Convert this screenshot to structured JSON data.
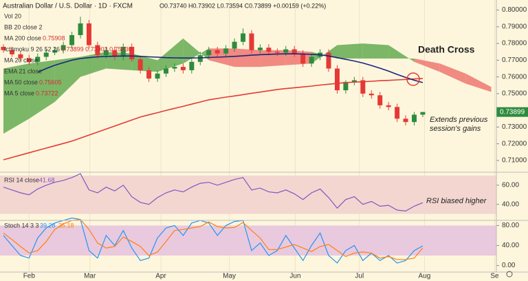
{
  "header": {
    "symbol": "Australian Dollar / U.S. Dollar · 1D · FXCM",
    "ohlc": "O0.73740 H0.73902 L0.73594 C0.73899 +0.00159 (+0.22%)"
  },
  "legend": [
    {
      "name": "Vol 20"
    },
    {
      "name": "BB 20 close 2"
    },
    {
      "name": "MA 200 close",
      "value": "0.75908"
    },
    {
      "name": "Ichimoku 9 26 52 26",
      "value": "0.73899 0.73903 0.75430"
    },
    {
      "name": "MA 20 close"
    },
    {
      "name": "EMA 21 close"
    },
    {
      "name": "MA 50 close",
      "value": "0.75605"
    },
    {
      "name": "MA 5 close",
      "value": "0.73722"
    }
  ],
  "chart_data": [
    {
      "type": "candlestick",
      "open": [
        0.778,
        0.776,
        0.7735,
        0.7712,
        0.769,
        0.772,
        0.7745,
        0.776,
        0.779,
        0.785,
        0.792,
        0.779,
        0.773,
        0.776,
        0.772,
        0.778,
        0.7705,
        0.764,
        0.759,
        0.762,
        0.765,
        0.766,
        0.764,
        0.769,
        0.773,
        0.776,
        0.774,
        0.777,
        0.781,
        0.786,
        0.776,
        0.7775,
        0.775,
        0.7745,
        0.7765,
        0.774,
        0.768,
        0.772,
        0.7745,
        0.765,
        0.752,
        0.757,
        0.758,
        0.75,
        0.749,
        0.743,
        0.742,
        0.735,
        0.733,
        0.7374
      ],
      "high": [
        0.7795,
        0.778,
        0.7755,
        0.7732,
        0.774,
        0.7765,
        0.778,
        0.781,
        0.787,
        0.796,
        0.794,
        0.781,
        0.778,
        0.778,
        0.78,
        0.78,
        0.7725,
        0.766,
        0.764,
        0.767,
        0.768,
        0.768,
        0.771,
        0.775,
        0.778,
        0.778,
        0.779,
        0.783,
        0.789,
        0.788,
        0.7795,
        0.7795,
        0.777,
        0.7785,
        0.7785,
        0.776,
        0.774,
        0.7765,
        0.7765,
        0.767,
        0.758,
        0.76,
        0.76,
        0.752,
        0.751,
        0.745,
        0.744,
        0.737,
        0.739,
        0.73902
      ],
      "low": [
        0.7745,
        0.772,
        0.7695,
        0.767,
        0.767,
        0.77,
        0.773,
        0.774,
        0.777,
        0.783,
        0.777,
        0.771,
        0.771,
        0.77,
        0.77,
        0.769,
        0.762,
        0.757,
        0.757,
        0.76,
        0.763,
        0.762,
        0.762,
        0.767,
        0.771,
        0.772,
        0.772,
        0.775,
        0.779,
        0.774,
        0.774,
        0.773,
        0.7725,
        0.7725,
        0.772,
        0.766,
        0.766,
        0.77,
        0.763,
        0.75,
        0.75,
        0.755,
        0.748,
        0.747,
        0.741,
        0.74,
        0.733,
        0.731,
        0.731,
        0.73594
      ],
      "close": [
        0.776,
        0.7735,
        0.7712,
        0.769,
        0.772,
        0.7745,
        0.776,
        0.779,
        0.785,
        0.792,
        0.779,
        0.773,
        0.776,
        0.772,
        0.778,
        0.7705,
        0.764,
        0.759,
        0.762,
        0.765,
        0.766,
        0.764,
        0.769,
        0.773,
        0.776,
        0.774,
        0.777,
        0.781,
        0.786,
        0.776,
        0.7775,
        0.775,
        0.7745,
        0.7765,
        0.774,
        0.768,
        0.772,
        0.7745,
        0.765,
        0.752,
        0.757,
        0.758,
        0.75,
        0.749,
        0.743,
        0.742,
        0.735,
        0.733,
        0.7374,
        0.73899
      ],
      "last_label": "0.73899",
      "up_color": "#2e8b3e",
      "down_color": "#e53935",
      "series": [
        {
          "legend": 2,
          "color": "#e53935",
          "values": [
            0.7104,
            0.7118,
            0.7132,
            0.7146,
            0.716,
            0.7174,
            0.7188,
            0.7202,
            0.7216,
            0.7234,
            0.7252,
            0.727,
            0.7288,
            0.7306,
            0.7324,
            0.7342,
            0.736,
            0.7373,
            0.7386,
            0.7399,
            0.7412,
            0.7424,
            0.7437,
            0.745,
            0.7463,
            0.7471,
            0.7479,
            0.7486,
            0.7494,
            0.7502,
            0.7509,
            0.7517,
            0.7525,
            0.753,
            0.7535,
            0.754,
            0.7545,
            0.7551,
            0.7556,
            0.7561,
            0.7566,
            0.7569,
            0.7571,
            0.7574,
            0.7577,
            0.7579,
            0.7582,
            0.7585,
            0.7588,
            0.759
          ]
        },
        {
          "legend": 6,
          "color": "#1a237e",
          "values": [
            null,
            null,
            null,
            null,
            0.7628,
            0.765,
            0.767,
            0.7685,
            0.77,
            0.771,
            0.7715,
            0.772,
            0.7722,
            0.7724,
            0.7725,
            0.7725,
            0.7723,
            0.772,
            0.7718,
            0.7715,
            0.7714,
            0.7713,
            0.7713,
            0.7714,
            0.7716,
            0.7718,
            0.772,
            0.7723,
            0.7726,
            0.773,
            0.7733,
            0.7735,
            0.7737,
            0.7738,
            0.7738,
            0.7737,
            0.7735,
            0.7732,
            0.7725,
            0.7715,
            0.7705,
            0.7695,
            0.7683,
            0.7668,
            0.7652,
            0.7635,
            0.7615,
            0.7597,
            0.758,
            0.7566
          ]
        }
      ],
      "cloud": {
        "x": [
          0,
          3,
          6,
          9,
          12,
          15,
          18,
          21,
          24,
          27,
          30,
          33,
          36,
          39,
          42,
          45,
          48,
          51,
          54,
          57
        ],
        "span_a": [
          0.765,
          0.768,
          0.77,
          0.772,
          0.775,
          0.774,
          0.77,
          0.783,
          0.77,
          0.766,
          0.766,
          0.767,
          0.768,
          0.779,
          0.78,
          0.779,
          0.769,
          0.763,
          0.756,
          0.751
        ],
        "span_b": [
          0.726,
          0.735,
          0.745,
          0.76,
          0.765,
          0.764,
          0.763,
          0.768,
          0.777,
          0.777,
          0.776,
          0.776,
          0.775,
          0.771,
          0.771,
          0.771,
          0.771,
          0.768,
          0.762,
          0.754
        ],
        "up_color": "#5aa84a",
        "down_color": "#ee6f6a"
      },
      "ylim": [
        0.703,
        0.806
      ],
      "yticks": [
        {
          "value": 0.8,
          "label": "0.80000"
        },
        {
          "value": 0.79,
          "label": "0.79000"
        },
        {
          "value": 0.78,
          "label": "0.78000"
        },
        {
          "value": 0.77,
          "label": "0.77000"
        },
        {
          "value": 0.76,
          "label": "0.76000"
        },
        {
          "value": 0.75,
          "label": "0.75000"
        },
        {
          "value": 0.74,
          "label": "0.74000"
        },
        {
          "value": 0.73,
          "label": "0.73000"
        },
        {
          "value": 0.72,
          "label": "0.72000"
        },
        {
          "value": 0.71,
          "label": "0.71000"
        }
      ],
      "xlim": [
        -0.4,
        57.6
      ],
      "xticks": [
        {
          "value": 3,
          "label": "Feb"
        },
        {
          "value": 10.1,
          "label": "Mar"
        },
        {
          "value": 18.4,
          "label": "Apr"
        },
        {
          "value": 26.4,
          "label": "May"
        },
        {
          "value": 34.1,
          "label": "Jun"
        },
        {
          "value": 41.6,
          "label": "Jul"
        },
        {
          "value": 49.2,
          "label": "Aug"
        },
        {
          "value": 57.4,
          "label": "Se"
        }
      ],
      "annotations": [
        "Death Cross",
        "Extends previous",
        "session's gains"
      ]
    },
    {
      "type": "line",
      "title": "RSI 14 close",
      "band_color": "#f3d6d0",
      "band": [
        30,
        70
      ],
      "series": [
        {
          "color": "#7e57c2",
          "value_label": "41.68",
          "values": [
            58,
            55,
            52,
            50,
            56,
            60,
            63,
            65,
            68,
            72,
            55,
            52,
            58,
            54,
            60,
            48,
            42,
            40,
            47,
            52,
            55,
            53,
            58,
            62,
            63,
            60,
            63,
            66,
            68,
            55,
            57,
            53,
            52,
            55,
            51,
            45,
            52,
            56,
            47,
            36,
            45,
            48,
            40,
            43,
            38,
            39,
            34,
            33,
            38,
            41.68
          ]
        }
      ],
      "ylim": [
        23.2,
        73.6
      ],
      "yticks": [
        {
          "value": 60,
          "label": "60.00"
        },
        {
          "value": 40,
          "label": "40.00"
        }
      ],
      "annotations": [
        "RSI biased higher"
      ]
    },
    {
      "type": "line",
      "title": "Stoch 14 3 3",
      "band_color": "#e9c9de",
      "band": [
        20,
        80
      ],
      "series": [
        {
          "color": "#2196f3",
          "value_label": "39.28",
          "values": [
            60,
            40,
            20,
            15,
            55,
            75,
            85,
            90,
            95,
            92,
            30,
            15,
            60,
            40,
            70,
            35,
            10,
            15,
            55,
            75,
            80,
            60,
            85,
            90,
            85,
            60,
            80,
            88,
            90,
            30,
            45,
            20,
            30,
            60,
            35,
            10,
            40,
            65,
            20,
            5,
            30,
            40,
            10,
            25,
            10,
            20,
            5,
            10,
            30,
            39.28
          ]
        },
        {
          "color": "#ff7f0e",
          "value_label": "35.18",
          "values": [
            65,
            52,
            38,
            25,
            30,
            48,
            72,
            83,
            90,
            92,
            72,
            45,
            35,
            38,
            57,
            48,
            38,
            20,
            27,
            48,
            70,
            72,
            75,
            78,
            87,
            78,
            75,
            76,
            86,
            70,
            55,
            32,
            32,
            37,
            42,
            35,
            28,
            38,
            42,
            30,
            18,
            25,
            27,
            25,
            15,
            18,
            12,
            12,
            15,
            35.18
          ]
        }
      ],
      "ylim": [
        -13,
        90.2
      ],
      "yticks": [
        {
          "value": 80,
          "label": "80.00"
        },
        {
          "value": 40,
          "label": "40.00"
        },
        {
          "value": 0,
          "label": "0.00"
        }
      ],
      "annotations": []
    }
  ]
}
